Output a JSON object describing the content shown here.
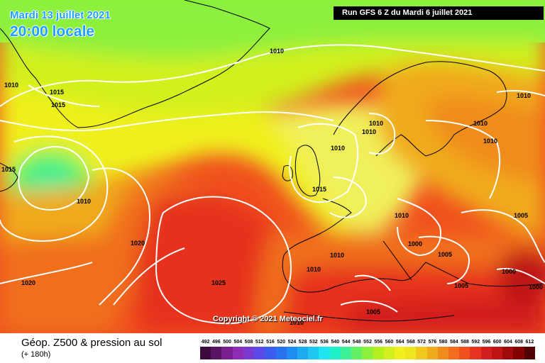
{
  "overlay": {
    "date_text": "Mardi 13 juillet 2021",
    "time_text": "20:00 locale",
    "run_text": "Run GFS 6 Z du Mardi 6 juillet 2021",
    "copyright_text": "Copyright © 2021 Meteociel.fr"
  },
  "footer": {
    "parameter_title": "Géop. Z500 & pression au sol",
    "lead_time": "(+ 180h)"
  },
  "legend": {
    "values": [
      "492",
      "496",
      "500",
      "504",
      "508",
      "512",
      "516",
      "520",
      "524",
      "528",
      "532",
      "536",
      "540",
      "544",
      "548",
      "552",
      "556",
      "560",
      "564",
      "568",
      "572",
      "576",
      "580",
      "584",
      "588",
      "592",
      "596",
      "600",
      "604",
      "608",
      "612"
    ],
    "colors": [
      "#3c0a3c",
      "#5a1464",
      "#7a1e8e",
      "#8e2cb4",
      "#7a3ad0",
      "#5a4ae8",
      "#3c5cf0",
      "#2872f0",
      "#1e8cf0",
      "#1eaaf0",
      "#1ec8f0",
      "#1ee6f0",
      "#1ef0c8",
      "#3cf096",
      "#64f064",
      "#8cf03c",
      "#b4f01e",
      "#d2f01e",
      "#f0f01e",
      "#f0e61e",
      "#f0c81e",
      "#f0aa1e",
      "#f08c1e",
      "#f06e1e",
      "#f0501e",
      "#e6321e",
      "#d21e1e",
      "#be1414",
      "#a00a0a",
      "#820000",
      "#500000"
    ]
  },
  "isobar_labels": [
    "1010",
    "1010",
    "1015",
    "1015",
    "1015",
    "1010",
    "1010",
    "1010",
    "1010",
    "1010",
    "1010",
    "1010",
    "1015",
    "1010",
    "1005",
    "1010",
    "1000",
    "1005",
    "1000",
    "1020",
    "1020",
    "1025",
    "1010",
    "1010",
    "1005",
    "1005",
    "1000"
  ],
  "colors": {
    "isobar": "#ffffff",
    "coast": "#000000",
    "low_center": "#64f064",
    "high_core": "#e6321e"
  }
}
